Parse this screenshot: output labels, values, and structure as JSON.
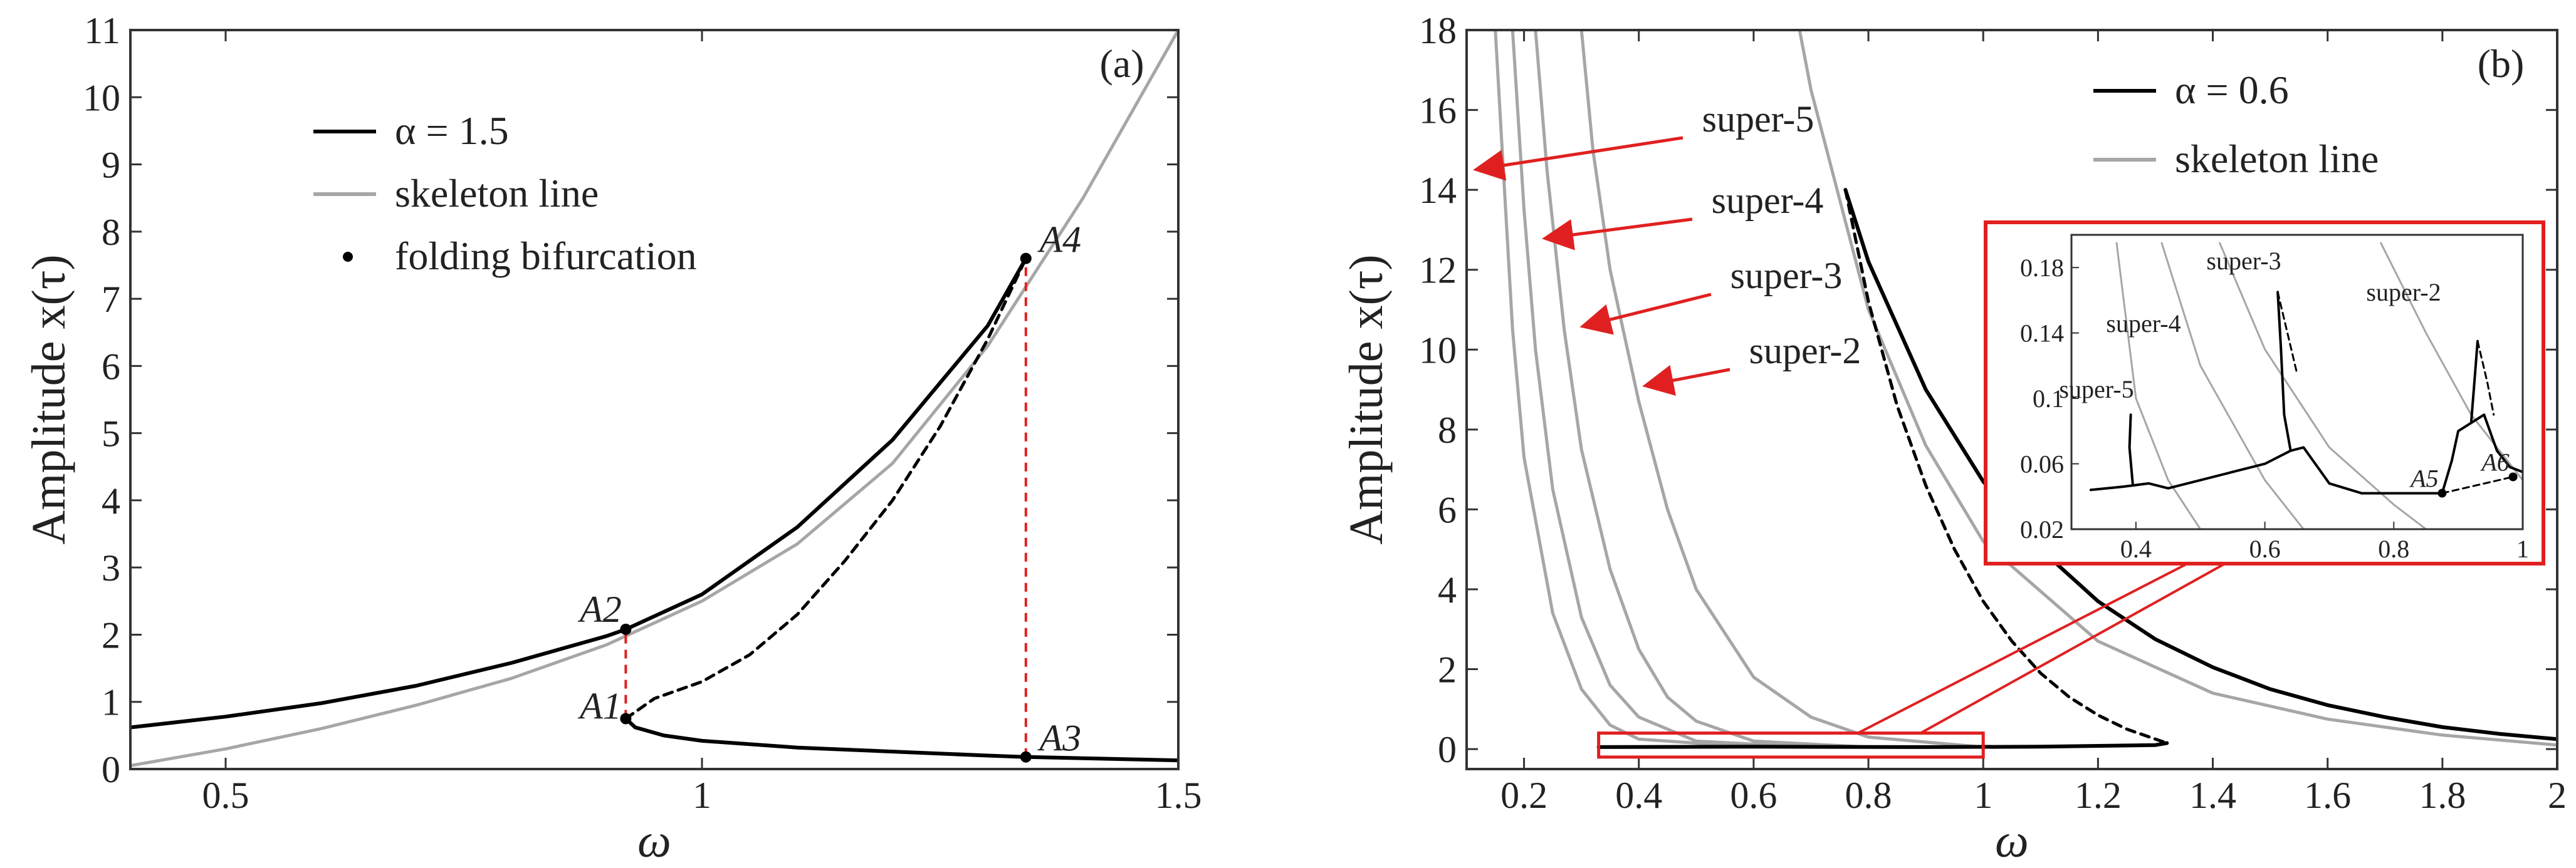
{
  "figure": {
    "colors": {
      "response": "#000000",
      "skeleton": "#a6a6a6",
      "marker_line": "#e02020",
      "axes": "#333333"
    }
  },
  "chart_data": [
    {
      "type": "line",
      "panel_label": "(a)",
      "xlabel": "ω",
      "ylabel": "Amplitude x(τ)",
      "xlim": [
        0.4,
        1.5
      ],
      "ylim": [
        0,
        11
      ],
      "xticks": [
        0.5,
        1,
        1.5
      ],
      "xtick_labels": [
        "0.5",
        "1",
        "1.5"
      ],
      "yticks": [
        0,
        1,
        2,
        3,
        4,
        5,
        6,
        7,
        8,
        9,
        10,
        11
      ],
      "ytick_labels": [
        "0",
        "1",
        "2",
        "3",
        "4",
        "5",
        "6",
        "7",
        "8",
        "9",
        "10",
        "11"
      ],
      "legend": {
        "location": "top-left",
        "entries": [
          {
            "label": "α = 1.5",
            "style": "solid-black"
          },
          {
            "label": "skeleton line",
            "style": "solid-gray"
          },
          {
            "label": "folding bifurcation",
            "style": "dot-black"
          }
        ]
      },
      "series": [
        {
          "name": "skeleton line",
          "style": "solid-gray",
          "x": [
            0.4,
            0.5,
            0.6,
            0.7,
            0.8,
            0.9,
            1.0,
            1.1,
            1.2,
            1.3,
            1.4,
            1.5
          ],
          "y": [
            0.05,
            0.3,
            0.6,
            0.95,
            1.35,
            1.85,
            2.5,
            3.35,
            4.55,
            6.3,
            8.5,
            11.0
          ]
        },
        {
          "name": "upper stable branch",
          "style": "solid-black",
          "x": [
            0.4,
            0.5,
            0.6,
            0.7,
            0.8,
            0.9,
            0.92,
            1.0,
            1.1,
            1.2,
            1.3,
            1.34
          ],
          "y": [
            0.62,
            0.78,
            0.98,
            1.24,
            1.58,
            1.98,
            2.08,
            2.6,
            3.6,
            4.9,
            6.6,
            7.6
          ]
        },
        {
          "name": "unstable branch",
          "style": "dashed-black",
          "x": [
            0.92,
            0.95,
            1.0,
            1.05,
            1.1,
            1.15,
            1.2,
            1.25,
            1.3,
            1.34
          ],
          "y": [
            0.75,
            1.05,
            1.3,
            1.7,
            2.3,
            3.1,
            4.0,
            5.1,
            6.4,
            7.6
          ]
        },
        {
          "name": "lower stable branch",
          "style": "solid-black",
          "x": [
            0.92,
            0.93,
            0.96,
            1.0,
            1.1,
            1.2,
            1.3,
            1.34,
            1.4,
            1.5
          ],
          "y": [
            0.75,
            0.62,
            0.5,
            0.42,
            0.32,
            0.26,
            0.2,
            0.18,
            0.16,
            0.13
          ]
        }
      ],
      "bifurcation_points": [
        {
          "label": "A1",
          "x": 0.92,
          "y": 0.75
        },
        {
          "label": "A2",
          "x": 0.92,
          "y": 2.08
        },
        {
          "label": "A3",
          "x": 1.34,
          "y": 0.18
        },
        {
          "label": "A4",
          "x": 1.34,
          "y": 7.6
        }
      ],
      "jump_lines": [
        {
          "x": 0.92,
          "y_from": 0.75,
          "y_to": 2.08
        },
        {
          "x": 1.34,
          "y_from": 0.18,
          "y_to": 7.6
        }
      ]
    },
    {
      "type": "line",
      "panel_label": "(b)",
      "xlabel": "ω",
      "ylabel": "Amplitude x(τ)",
      "xlim": [
        0.1,
        2.0
      ],
      "ylim": [
        -0.5,
        18
      ],
      "xticks": [
        0.2,
        0.4,
        0.6,
        0.8,
        1,
        1.2,
        1.4,
        1.6,
        1.8,
        2
      ],
      "xtick_labels": [
        "0.2",
        "0.4",
        "0.6",
        "0.8",
        "1",
        "1.2",
        "1.4",
        "1.6",
        "1.8",
        "2"
      ],
      "yticks": [
        0,
        2,
        4,
        6,
        8,
        10,
        12,
        14,
        16,
        18
      ],
      "ytick_labels": [
        "0",
        "2",
        "4",
        "6",
        "8",
        "10",
        "12",
        "14",
        "16",
        "18"
      ],
      "legend": {
        "location": "top-right",
        "entries": [
          {
            "label": "α = 0.6",
            "style": "solid-black"
          },
          {
            "label": "skeleton line",
            "style": "solid-gray"
          }
        ]
      },
      "series": [
        {
          "name": "skeleton main",
          "style": "solid-gray",
          "x": [
            0.68,
            0.7,
            0.8,
            0.9,
            1.0,
            1.2,
            1.4,
            1.6,
            1.8,
            2.0
          ],
          "y": [
            18,
            16.5,
            11.0,
            7.6,
            5.2,
            2.7,
            1.4,
            0.75,
            0.35,
            0.1
          ]
        },
        {
          "name": "skeleton super-2",
          "style": "solid-gray",
          "x": [
            0.3,
            0.32,
            0.35,
            0.4,
            0.45,
            0.5,
            0.6,
            0.7,
            0.8,
            1.0
          ],
          "y": [
            18,
            15,
            12,
            8.7,
            6.0,
            4.0,
            1.8,
            0.8,
            0.3,
            0.05
          ]
        },
        {
          "name": "skeleton super-3",
          "style": "solid-gray",
          "x": [
            0.22,
            0.24,
            0.27,
            0.3,
            0.35,
            0.4,
            0.45,
            0.5,
            0.6,
            0.8
          ],
          "y": [
            18,
            14.5,
            10.5,
            7.5,
            4.5,
            2.5,
            1.3,
            0.7,
            0.2,
            0.05
          ]
        },
        {
          "name": "skeleton super-4",
          "style": "solid-gray",
          "x": [
            0.18,
            0.2,
            0.22,
            0.25,
            0.3,
            0.35,
            0.4,
            0.5,
            0.7
          ],
          "y": [
            18,
            13.5,
            10.0,
            6.5,
            3.3,
            1.6,
            0.8,
            0.2,
            0.05
          ]
        },
        {
          "name": "skeleton super-5",
          "style": "solid-gray",
          "x": [
            0.15,
            0.16,
            0.18,
            0.2,
            0.25,
            0.3,
            0.35,
            0.4,
            0.6
          ],
          "y": [
            18,
            15.5,
            10.5,
            7.3,
            3.4,
            1.5,
            0.6,
            0.25,
            0.05
          ]
        },
        {
          "name": "response stable",
          "style": "solid-black",
          "x": [
            0.76,
            0.8,
            0.9,
            1.0,
            1.1,
            1.2,
            1.3,
            1.4,
            1.5,
            1.6,
            1.7,
            1.8,
            1.9,
            2.0
          ],
          "y": [
            14.0,
            12.2,
            9.0,
            6.7,
            5.0,
            3.7,
            2.75,
            2.05,
            1.5,
            1.1,
            0.8,
            0.55,
            0.38,
            0.25
          ]
        },
        {
          "name": "response unstable",
          "style": "dashed-black",
          "x": [
            0.76,
            0.8,
            0.85,
            0.9,
            0.95,
            1.0,
            1.05,
            1.1,
            1.15,
            1.2,
            1.25,
            1.3,
            1.32
          ],
          "y": [
            14.0,
            11.2,
            8.6,
            6.6,
            5.0,
            3.7,
            2.7,
            1.9,
            1.3,
            0.85,
            0.5,
            0.25,
            0.15
          ]
        },
        {
          "name": "response lower",
          "style": "solid-black",
          "x": [
            0.33,
            0.6,
            0.9,
            1.1,
            1.3,
            1.32
          ],
          "y": [
            0.05,
            0.06,
            0.05,
            0.06,
            0.1,
            0.15
          ]
        }
      ],
      "annotations": [
        {
          "text": "super-5",
          "x": 0.14,
          "y": 14.5
        },
        {
          "text": "super-4",
          "x": 0.18,
          "y": 12.9
        },
        {
          "text": "super-3",
          "x": 0.25,
          "y": 10.9
        },
        {
          "text": "super-2",
          "x": 0.37,
          "y": 9.3
        }
      ],
      "highlight_box": {
        "x": [
          0.33,
          1.0
        ],
        "y": [
          -0.2,
          0.4
        ]
      },
      "inset": {
        "xlim": [
          0.3,
          1.0
        ],
        "ylim": [
          0.02,
          0.2
        ],
        "xticks": [
          0.4,
          0.6,
          0.8,
          1
        ],
        "xtick_labels": [
          "0.4",
          "0.6",
          "0.8",
          "1"
        ],
        "yticks": [
          0.02,
          0.06,
          0.1,
          0.14,
          0.18
        ],
        "ytick_labels": [
          "0.02",
          "0.06",
          "0.1",
          "0.14",
          "0.18"
        ],
        "annotations": [
          "super-5",
          "super-4",
          "super-3",
          "super-2"
        ],
        "points": [
          {
            "label": "A5",
            "x": 0.875,
            "y": 0.042
          },
          {
            "label": "A6",
            "x": 0.985,
            "y": 0.052
          }
        ],
        "series": [
          {
            "name": "skeleton super-5",
            "style": "solid-gray",
            "x": [
              0.37,
              0.4,
              0.45,
              0.5
            ],
            "y": [
              0.195,
              0.1,
              0.05,
              0.02
            ]
          },
          {
            "name": "skeleton super-4",
            "style": "solid-gray",
            "x": [
              0.44,
              0.5,
              0.6,
              0.66
            ],
            "y": [
              0.195,
              0.12,
              0.05,
              0.02
            ]
          },
          {
            "name": "skeleton super-3",
            "style": "solid-gray",
            "x": [
              0.53,
              0.6,
              0.7,
              0.8,
              0.85
            ],
            "y": [
              0.195,
              0.13,
              0.07,
              0.035,
              0.02
            ]
          },
          {
            "name": "skeleton super-2",
            "style": "solid-gray",
            "x": [
              0.78,
              0.85,
              0.92,
              0.98,
              1.0
            ],
            "y": [
              0.195,
              0.14,
              0.09,
              0.06,
              0.05
            ]
          },
          {
            "name": "response",
            "style": "solid-black",
            "x": [
              0.33,
              0.38,
              0.42,
              0.45,
              0.5,
              0.55,
              0.6,
              0.64,
              0.66,
              0.7,
              0.75,
              0.8,
              0.85,
              0.875,
              0.89,
              0.9,
              0.92,
              0.94,
              0.96,
              0.98,
              1.0
            ],
            "y": [
              0.044,
              0.046,
              0.048,
              0.045,
              0.05,
              0.055,
              0.06,
              0.068,
              0.07,
              0.048,
              0.042,
              0.042,
              0.042,
              0.042,
              0.062,
              0.08,
              0.085,
              0.09,
              0.068,
              0.058,
              0.055
            ]
          },
          {
            "name": "response branch 3",
            "style": "solid-black",
            "x": [
              0.64,
              0.63,
              0.625,
              0.62
            ],
            "y": [
              0.068,
              0.09,
              0.13,
              0.165
            ]
          },
          {
            "name": "response unstable 3",
            "style": "dashed-black",
            "x": [
              0.62,
              0.635,
              0.65
            ],
            "y": [
              0.165,
              0.14,
              0.115
            ]
          },
          {
            "name": "response branch 2",
            "style": "solid-black",
            "x": [
              0.92,
              0.925,
              0.93
            ],
            "y": [
              0.085,
              0.11,
              0.135
            ]
          },
          {
            "name": "response unstable 2",
            "style": "dashed-black",
            "x": [
              0.93,
              0.945,
              0.955
            ],
            "y": [
              0.135,
              0.11,
              0.09
            ]
          },
          {
            "name": "response branch 5",
            "style": "solid-black",
            "x": [
              0.395,
              0.39,
              0.392
            ],
            "y": [
              0.048,
              0.07,
              0.09
            ]
          },
          {
            "name": "unstable lower",
            "style": "dashed-black",
            "x": [
              0.875,
              0.93,
              0.985
            ],
            "y": [
              0.042,
              0.047,
              0.052
            ]
          }
        ]
      }
    }
  ]
}
